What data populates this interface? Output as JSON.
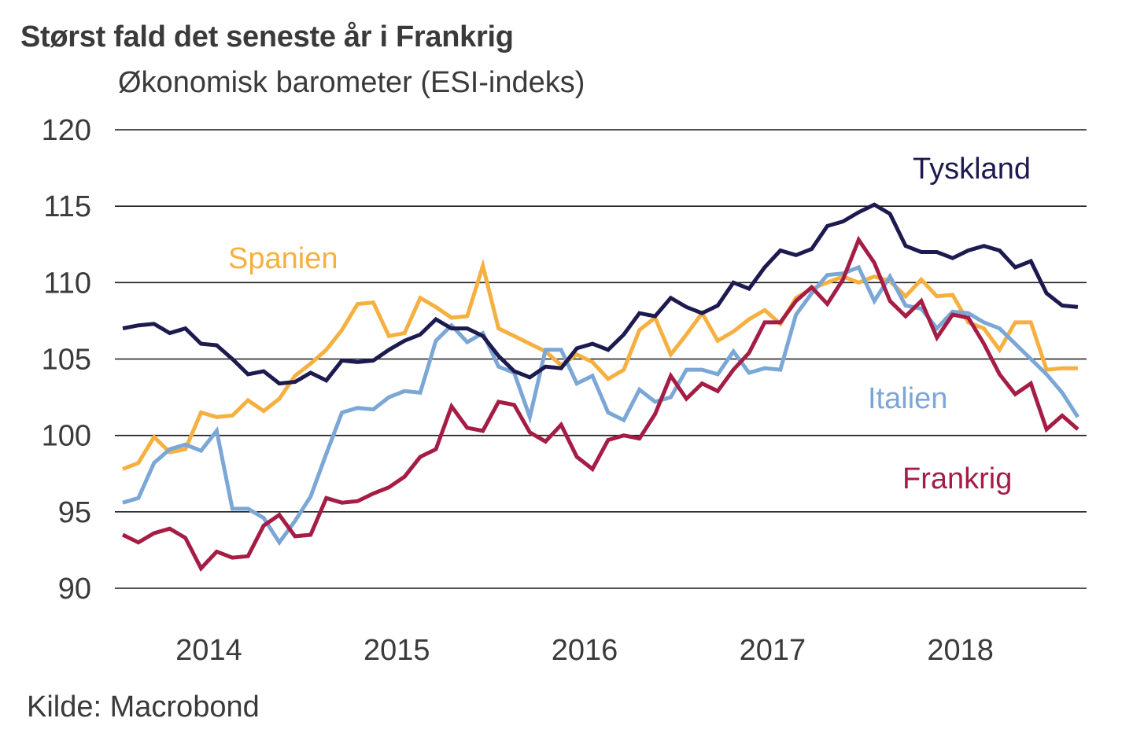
{
  "chart_data": {
    "type": "line",
    "title": "Størst fald det seneste år i Frankrig",
    "subtitle": "Økonomisk barometer (ESI-indeks)",
    "xlabel": "",
    "ylabel": "",
    "source": "Kilde: Macrobond",
    "ylim": [
      90,
      120
    ],
    "yticks": [
      90,
      95,
      100,
      105,
      110,
      115,
      120
    ],
    "xticks": [
      "2014",
      "2015",
      "2016",
      "2017",
      "2018"
    ],
    "x_start": "2014-01",
    "frequency": "monthly",
    "grid": true,
    "legend": "inline labels",
    "series": [
      {
        "name": "Tyskland",
        "color": "#1d1a4f",
        "values": [
          107.0,
          107.2,
          107.3,
          106.7,
          107.0,
          106.0,
          105.9,
          105.0,
          104.0,
          104.2,
          103.4,
          103.5,
          104.1,
          103.6,
          104.9,
          104.8,
          104.9,
          105.6,
          106.2,
          106.6,
          107.6,
          107.0,
          107.0,
          106.5,
          105.2,
          104.2,
          103.8,
          104.5,
          104.4,
          105.7,
          106.0,
          105.6,
          106.6,
          108.0,
          107.8,
          109.0,
          108.4,
          108.0,
          108.5,
          110.0,
          109.6,
          111.0,
          112.1,
          111.8,
          112.2,
          113.7,
          114.0,
          114.6,
          115.1,
          114.5,
          112.4,
          112.0,
          112.0,
          111.6,
          112.1,
          112.4,
          112.1,
          111.0,
          111.4,
          109.3,
          108.5,
          108.4
        ]
      },
      {
        "name": "Spanien",
        "color": "#f5b041",
        "values": [
          97.8,
          98.2,
          99.9,
          98.9,
          99.1,
          101.5,
          101.2,
          101.3,
          102.3,
          101.6,
          102.4,
          103.9,
          104.7,
          105.6,
          106.9,
          108.6,
          108.7,
          106.5,
          106.7,
          109.0,
          108.4,
          107.7,
          107.8,
          111.1,
          107.0,
          106.5,
          106.0,
          105.5,
          104.6,
          105.3,
          104.8,
          103.7,
          104.3,
          106.9,
          107.7,
          105.3,
          106.6,
          108.0,
          106.2,
          106.8,
          107.6,
          108.2,
          107.3,
          109.0,
          109.6,
          110.0,
          110.4,
          110.0,
          110.4,
          110.1,
          109.1,
          110.2,
          109.1,
          109.2,
          107.4,
          107.0,
          105.6,
          107.4,
          107.4,
          104.3,
          104.4,
          104.4
        ]
      },
      {
        "name": "Italien",
        "color": "#7ba7d6",
        "values": [
          95.6,
          95.9,
          98.2,
          99.1,
          99.4,
          99.0,
          100.3,
          95.2,
          95.2,
          94.6,
          93.0,
          94.4,
          96.0,
          98.8,
          101.5,
          101.8,
          101.7,
          102.5,
          102.9,
          102.8,
          106.2,
          107.2,
          106.1,
          106.7,
          104.5,
          104.1,
          101.2,
          105.6,
          105.6,
          103.4,
          103.9,
          101.5,
          101.0,
          103.0,
          102.2,
          102.5,
          104.3,
          104.3,
          104.0,
          105.5,
          104.1,
          104.4,
          104.3,
          107.9,
          109.3,
          110.5,
          110.6,
          111.0,
          108.8,
          110.4,
          108.5,
          108.3,
          107.0,
          108.1,
          108.0,
          107.4,
          107.0,
          106.0,
          105.0,
          104.0,
          102.8,
          101.2
        ]
      },
      {
        "name": "Frankrig",
        "color": "#a51c45",
        "values": [
          93.5,
          93.0,
          93.6,
          93.9,
          93.3,
          91.3,
          92.4,
          92.0,
          92.1,
          94.1,
          94.8,
          93.4,
          93.5,
          95.9,
          95.6,
          95.7,
          96.2,
          96.6,
          97.3,
          98.6,
          99.1,
          101.9,
          100.5,
          100.3,
          102.2,
          102.0,
          100.2,
          99.6,
          100.7,
          98.6,
          97.8,
          99.7,
          100.0,
          99.8,
          101.4,
          103.9,
          102.4,
          103.4,
          102.9,
          104.3,
          105.4,
          107.4,
          107.4,
          108.8,
          109.7,
          108.6,
          110.2,
          112.8,
          111.3,
          108.8,
          107.8,
          108.8,
          106.4,
          107.9,
          107.7,
          106.0,
          104.0,
          102.7,
          103.4,
          100.4,
          101.3,
          100.4
        ]
      }
    ],
    "labels": [
      {
        "series": "Tyskland",
        "text": "Tyskland",
        "color": "#1d1a4f"
      },
      {
        "series": "Spanien",
        "text": "Spanien",
        "color": "#f5b041"
      },
      {
        "series": "Italien",
        "text": "Italien",
        "color": "#7ba7d6"
      },
      {
        "series": "Frankrig",
        "text": "Frankrig",
        "color": "#a51c45"
      }
    ]
  }
}
